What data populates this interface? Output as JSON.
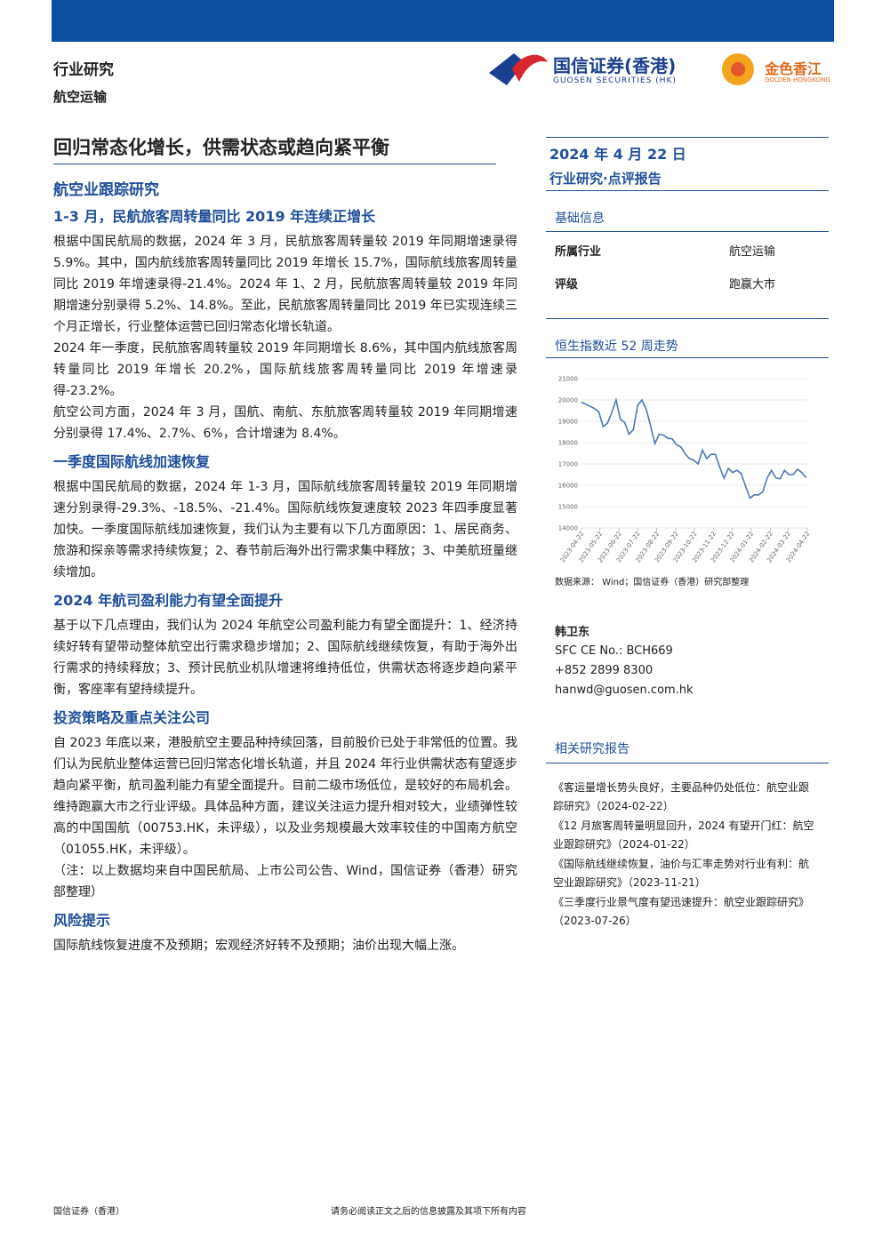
{
  "header": {
    "category": "行业研究",
    "sector": "航空运输",
    "logo_cn": "国信证券(香港)",
    "logo_en": "GUOSEN SECURITIES (HK)",
    "logo2_cn": "金色香江",
    "logo2_en": "GOLDEN HONGKONG"
  },
  "title": "回归常态化增长，供需状态或趋向紧平衡",
  "subtitle": "航空业跟踪研究",
  "sections": [
    {
      "heading": "1-3 月，民航旅客周转量同比 2019 年连续正增长",
      "paragraphs": [
        "根据中国民航局的数据，2024 年 3 月，民航旅客周转量较 2019 年同期增速录得 5.9%。其中，国内航线旅客周转量同比 2019 年增长 15.7%，国际航线旅客周转量同比 2019 年增速录得-21.4%。2024 年 1、2 月，民航旅客周转量较 2019 年同期增速分别录得 5.2%、14.8%。至此，民航旅客周转量同比 2019 年已实现连续三个月正增长，行业整体运营已回归常态化增长轨道。",
        "2024 年一季度，民航旅客周转量较 2019 年同期增长 8.6%，其中国内航线旅客周转量同比 2019 年增长 20.2%，国际航线旅客周转量同比 2019 年增速录得-23.2%。",
        "航空公司方面，2024 年 3 月，国航、南航、东航旅客周转量较 2019 年同期增速分别录得 17.4%、2.7%、6%，合计增速为 8.4%。"
      ]
    },
    {
      "heading": "一季度国际航线加速恢复",
      "paragraphs": [
        "根据中国民航局的数据，2024 年 1-3 月，国际航线旅客周转量较 2019 年同期增速分别录得-29.3%、-18.5%、-21.4%。国际航线恢复速度较 2023 年四季度显著加快。一季度国际航线加速恢复，我们认为主要有以下几方面原因：1、居民商务、旅游和探亲等需求持续恢复；2、春节前后海外出行需求集中释放；3、中美航班量继续增加。"
      ]
    },
    {
      "heading": "2024 年航司盈利能力有望全面提升",
      "paragraphs": [
        "基于以下几点理由，我们认为 2024 年航空公司盈利能力有望全面提升：1、经济持续好转有望带动整体航空出行需求稳步增加；2、国际航线继续恢复，有助于海外出行需求的持续释放；3、预计民航业机队增速将维持低位，供需状态将逐步趋向紧平衡，客座率有望持续提升。"
      ]
    },
    {
      "heading": "投资策略及重点关注公司",
      "paragraphs": [
        "自 2023 年底以来，港股航空主要品种持续回落，目前股价已处于非常低的位置。我们认为民航业整体运营已回归常态化增长轨道，并且 2024 年行业供需状态有望逐步趋向紧平衡，航司盈利能力有望全面提升。目前二级市场低位，是较好的布局机会。维持跑赢大市之行业评级。具体品种方面，建议关注运力提升相对较大，业绩弹性较高的中国国航（00753.HK，未评级），以及业务规模最大效率较佳的中国南方航空（01055.HK，未评级）。",
        "（注：以上数据均来自中国民航局、上市公司公告、Wind，国信证券（香港）研究部整理）"
      ]
    },
    {
      "heading": "风险提示",
      "paragraphs": [
        "国际航线恢复进度不及预期；宏观经济好转不及预期；油价出现大幅上涨。"
      ]
    }
  ],
  "side": {
    "date": "2024 年 4 月 22 日",
    "report_type": "行业研究·点评报告",
    "info_title": "基础信息",
    "info_rows": [
      [
        "所属行业",
        "航空运输"
      ],
      [
        "评级",
        "跑赢大市"
      ]
    ],
    "source": "数据来源： Wind；国信证券（香港）研究部整理",
    "analyst": {
      "name": "韩卫东",
      "sfc": "SFC CE No.: BCH669",
      "phone": "+852 2899 8300",
      "email": "hanwd@guosen.com.hk"
    },
    "related_title": "相关研究报告",
    "related": [
      "《客运量增长势头良好，主要品种仍处低位：航空业跟踪研究》（2024-02-22）",
      "《12 月旅客周转量明显回升，2024 有望开门红：航空业跟踪研究》（2024-01-22）",
      "《国际航线继续恢复，油价与汇率走势对行业有利：航空业跟踪研究》（2023-11-21）",
      "《三季度行业景气度有望迅速提升：航空业跟踪研究》（2023-07-26）"
    ]
  },
  "chart_data": {
    "type": "line",
    "title": "恒生指数近 52 周走势",
    "color": "#4a78b5",
    "x": [
      "2023-04-22",
      "2023-04-29",
      "2023-05-06",
      "2023-05-13",
      "2023-05-20",
      "2023-05-27",
      "2023-06-03",
      "2023-06-10",
      "2023-06-17",
      "2023-06-24",
      "2023-07-01",
      "2023-07-08",
      "2023-07-15",
      "2023-07-22",
      "2023-07-29",
      "2023-08-05",
      "2023-08-12",
      "2023-08-19",
      "2023-08-26",
      "2023-09-02",
      "2023-09-09",
      "2023-09-16",
      "2023-09-23",
      "2023-09-30",
      "2023-10-07",
      "2023-10-14",
      "2023-10-21",
      "2023-10-28",
      "2023-11-04",
      "2023-11-11",
      "2023-11-18",
      "2023-11-25",
      "2023-12-02",
      "2023-12-09",
      "2023-12-16",
      "2023-12-23",
      "2023-12-30",
      "2024-01-06",
      "2024-01-13",
      "2024-01-20",
      "2024-01-27",
      "2024-02-03",
      "2024-02-10",
      "2024-02-17",
      "2024-02-24",
      "2024-03-02",
      "2024-03-09",
      "2024-03-16",
      "2024-03-23",
      "2024-03-30",
      "2024-04-06",
      "2024-04-13",
      "2024-04-20"
    ],
    "values": [
      19900,
      19800,
      19700,
      19600,
      19450,
      18750,
      18900,
      19400,
      20000,
      19100,
      18950,
      18400,
      18600,
      19750,
      20000,
      19550,
      18800,
      17950,
      18400,
      18350,
      18200,
      18180,
      17900,
      17800,
      17480,
      17250,
      17180,
      17000,
      17650,
      17250,
      17450,
      17450,
      16850,
      16330,
      16790,
      16600,
      16700,
      16550,
      15950,
      15400,
      15550,
      15550,
      15700,
      16350,
      16700,
      16350,
      16300,
      16700,
      16500,
      16500,
      16750,
      16600,
      16350
    ],
    "xlim": [
      "2023-04-22",
      "2024-04-22"
    ],
    "xticks": [
      "2023-04-22",
      "2023-05-22",
      "2023-06-22",
      "2023-07-22",
      "2023-08-22",
      "2023-09-22",
      "2023-10-22",
      "2023-11-22",
      "2023-12-22",
      "2024-01-22",
      "2024-02-22",
      "2024-03-22",
      "2024-04-22"
    ],
    "ylim": [
      14000,
      21000
    ],
    "yticks": [
      14000,
      15000,
      16000,
      17000,
      18000,
      19000,
      20000,
      21000
    ],
    "grid": true
  }
}
